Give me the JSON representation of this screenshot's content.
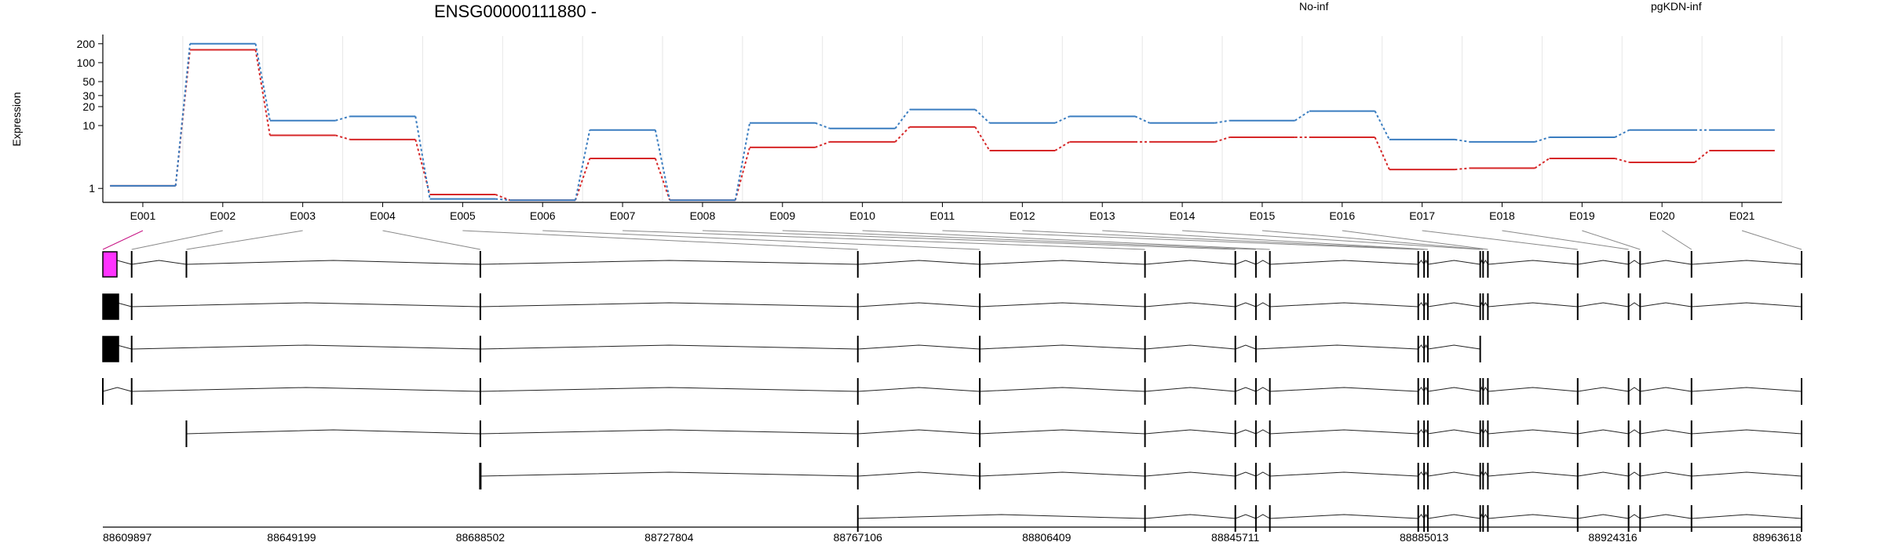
{
  "chart_data": {
    "type": "line",
    "title": "ENSG00000111880 -",
    "ylabel": "Expression",
    "xlabel": "",
    "yscale": "log",
    "ylim": [
      0.6,
      250
    ],
    "yticks": [
      "200",
      "100",
      "50",
      "30",
      "20",
      "10",
      "1"
    ],
    "grid": true,
    "legend_position": "top",
    "categories": [
      "E001",
      "E002",
      "E003",
      "E004",
      "E005",
      "E006",
      "E007",
      "E008",
      "E009",
      "E010",
      "E011",
      "E012",
      "E013",
      "E014",
      "E015",
      "E016",
      "E017",
      "E018",
      "E019",
      "E020",
      "E021"
    ],
    "series": [
      {
        "name": "No-inf",
        "color": "#d62728",
        "values": [
          1.1,
          160,
          7,
          6,
          0.8,
          0.65,
          3,
          0.65,
          4.5,
          5.5,
          9.5,
          4,
          5.5,
          5.5,
          6.5,
          6.5,
          2,
          2.1,
          3,
          2.6,
          4
        ]
      },
      {
        "name": "pgKDN-inf",
        "color": "#3a7dc0",
        "values": [
          1.1,
          200,
          12,
          14,
          0.68,
          0.65,
          8.5,
          0.65,
          11,
          9,
          18,
          11,
          14,
          11,
          12,
          17,
          6,
          5.5,
          6.5,
          8.5,
          8.5
        ]
      }
    ],
    "genome_axis_ticks": [
      "88609897",
      "88649199",
      "88688502",
      "88727804",
      "88767106",
      "88806409",
      "88845711",
      "88885013",
      "88924316",
      "88963618"
    ]
  }
}
